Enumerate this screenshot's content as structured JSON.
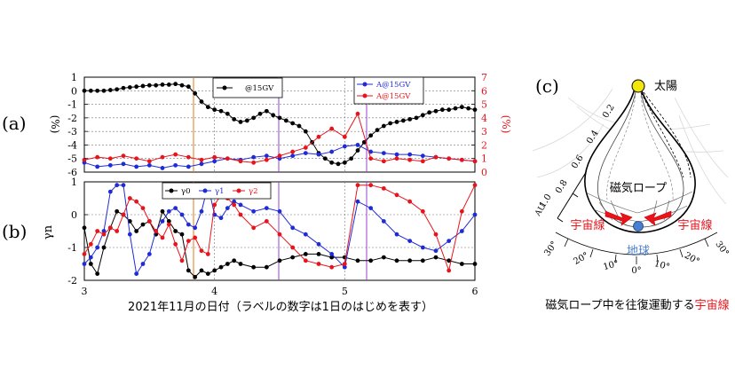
{
  "panel_labels": {
    "a": "(a)",
    "b": "(b)",
    "c": "(c)"
  },
  "xlabel": "2021年11月の日付（ラベルの数字は1日のはじめを表す）",
  "colors": {
    "black": "#000000",
    "blue": "#1f2bd6",
    "red": "#e8141c",
    "orange": "#e07a1a",
    "purple": "#9a40d0",
    "sun": "#f2e60c",
    "earth": "#4a7fd0"
  },
  "chart_data": [
    {
      "type": "line",
      "panel": "a",
      "xlim": [
        3,
        6
      ],
      "x_ticks": [
        3,
        4,
        5,
        6
      ],
      "ylim": [
        -6,
        1
      ],
      "y_ticks": [
        -6,
        -5,
        -4,
        -3,
        -2,
        -1,
        0,
        1
      ],
      "ylabel": "(%)",
      "ylim_right": [
        0,
        7
      ],
      "y_ticks_right": [
        0,
        1,
        2,
        3,
        4,
        5,
        6,
        7
      ],
      "ylabel_right": "(%)",
      "grid": true,
      "legend_left": [
        "@15GV"
      ],
      "legend_right": [
        "A@15GV",
        "A@15GV"
      ],
      "series": [
        {
          "axis": "left",
          "color": "black",
          "x": [
            3.0,
            3.05,
            3.1,
            3.15,
            3.2,
            3.25,
            3.3,
            3.35,
            3.4,
            3.45,
            3.5,
            3.55,
            3.6,
            3.65,
            3.7,
            3.75,
            3.8,
            3.85,
            3.9,
            3.95,
            4.0,
            4.05,
            4.1,
            4.15,
            4.2,
            4.25,
            4.3,
            4.35,
            4.4,
            4.45,
            4.5,
            4.55,
            4.6,
            4.65,
            4.7,
            4.75,
            4.8,
            4.85,
            4.9,
            4.95,
            5.0,
            5.05,
            5.1,
            5.15,
            5.2,
            5.25,
            5.3,
            5.35,
            5.4,
            5.45,
            5.5,
            5.55,
            5.6,
            5.65,
            5.7,
            5.75,
            5.8,
            5.85,
            5.9,
            5.95,
            6.0
          ],
          "y": [
            0,
            0,
            0,
            0,
            0.05,
            0.1,
            0.2,
            0.25,
            0.3,
            0.35,
            0.4,
            0.4,
            0.45,
            0.45,
            0.5,
            0.4,
            0.3,
            -0.2,
            -0.8,
            -1.2,
            -1.4,
            -1.5,
            -1.7,
            -2.1,
            -2.3,
            -2.2,
            -2.0,
            -1.7,
            -1.5,
            -1.8,
            -2.0,
            -2.2,
            -2.4,
            -2.6,
            -3.0,
            -3.8,
            -4.6,
            -5.0,
            -5.3,
            -5.4,
            -5.3,
            -5.0,
            -4.4,
            -3.8,
            -3.3,
            -2.9,
            -2.6,
            -2.4,
            -2.3,
            -2.2,
            -2.1,
            -2.0,
            -1.8,
            -1.6,
            -1.5,
            -1.4,
            -1.4,
            -1.3,
            -1.2,
            -1.3,
            -1.4
          ]
        },
        {
          "axis": "right",
          "color": "blue",
          "x": [
            3.0,
            3.1,
            3.2,
            3.3,
            3.4,
            3.5,
            3.6,
            3.7,
            3.8,
            3.9,
            4.0,
            4.1,
            4.2,
            4.3,
            4.4,
            4.5,
            4.6,
            4.7,
            4.8,
            4.9,
            5.0,
            5.1,
            5.2,
            5.3,
            5.4,
            5.5,
            5.6,
            5.7,
            5.8,
            5.9,
            6.0
          ],
          "y": [
            0.7,
            0.4,
            0.5,
            0.6,
            0.4,
            0.5,
            0.3,
            0.5,
            0.4,
            0.6,
            0.8,
            1.0,
            0.9,
            1.1,
            1.2,
            1.0,
            1.2,
            1.4,
            1.3,
            1.5,
            1.9,
            2.0,
            1.5,
            1.4,
            1.3,
            1.3,
            1.2,
            1.1,
            1.0,
            0.9,
            0.8
          ]
        },
        {
          "axis": "right",
          "color": "red",
          "x": [
            3.0,
            3.1,
            3.2,
            3.3,
            3.4,
            3.5,
            3.6,
            3.7,
            3.8,
            3.9,
            4.0,
            4.1,
            4.2,
            4.3,
            4.4,
            4.5,
            4.6,
            4.7,
            4.8,
            4.9,
            5.0,
            5.1,
            5.2,
            5.3,
            5.4,
            5.5,
            5.6,
            5.7,
            5.8,
            5.9,
            6.0
          ],
          "y": [
            0.9,
            1.1,
            1.0,
            1.2,
            1.0,
            0.8,
            1.1,
            1.3,
            1.1,
            0.9,
            1.1,
            1.0,
            0.8,
            0.7,
            0.9,
            1.2,
            1.5,
            1.8,
            2.6,
            3.2,
            2.6,
            4.3,
            1.0,
            0.8,
            1.0,
            0.9,
            0.8,
            1.1,
            1.0,
            0.9,
            0.8
          ]
        }
      ]
    },
    {
      "type": "line",
      "panel": "b",
      "xlim": [
        3,
        6
      ],
      "x_ticks": [
        3,
        4,
        5,
        6
      ],
      "ylim": [
        -2,
        1
      ],
      "y_ticks": [
        -2,
        -1,
        0,
        1
      ],
      "ylabel": "γn",
      "grid": true,
      "legend": [
        "γ0",
        "γ1",
        "γ2"
      ],
      "series": [
        {
          "name": "γ0",
          "color": "black",
          "x": [
            3.0,
            3.05,
            3.1,
            3.15,
            3.2,
            3.25,
            3.3,
            3.35,
            3.4,
            3.45,
            3.5,
            3.55,
            3.6,
            3.65,
            3.7,
            3.75,
            3.8,
            3.85,
            3.9,
            3.95,
            4.0,
            4.05,
            4.1,
            4.15,
            4.2,
            4.3,
            4.4,
            4.5,
            4.6,
            4.7,
            4.8,
            4.9,
            5.0,
            5.1,
            5.2,
            5.3,
            5.4,
            5.5,
            5.6,
            5.7,
            5.8,
            5.9,
            6.0
          ],
          "y": [
            -0.4,
            -1.5,
            -1.8,
            -1.0,
            -0.4,
            0.1,
            0.0,
            -0.2,
            -0.5,
            -0.3,
            -0.2,
            -0.6,
            0.1,
            -0.2,
            -0.5,
            -0.6,
            -1.7,
            -1.9,
            -1.7,
            -1.8,
            -1.7,
            -1.6,
            -1.5,
            -1.4,
            -1.5,
            -1.6,
            -1.6,
            -1.4,
            -1.3,
            -1.2,
            -1.2,
            -1.3,
            -1.3,
            -1.4,
            -1.4,
            -1.3,
            -1.4,
            -1.4,
            -1.4,
            -1.3,
            -1.4,
            -1.5,
            -1.5
          ]
        },
        {
          "name": "γ1",
          "color": "blue",
          "x": [
            3.0,
            3.05,
            3.1,
            3.15,
            3.2,
            3.25,
            3.3,
            3.35,
            3.4,
            3.45,
            3.5,
            3.55,
            3.6,
            3.65,
            3.7,
            3.75,
            3.8,
            3.85,
            3.9,
            3.95,
            4.0,
            4.05,
            4.1,
            4.15,
            4.2,
            4.3,
            4.4,
            4.5,
            4.6,
            4.7,
            4.8,
            4.9,
            5.0,
            5.1,
            5.2,
            5.3,
            5.4,
            5.5,
            5.6,
            5.7,
            5.8,
            5.9,
            6.0
          ],
          "y": [
            -1.5,
            -1.3,
            -1.0,
            -0.5,
            0.7,
            0.9,
            0.9,
            -0.6,
            -1.8,
            -1.5,
            -1.2,
            -0.5,
            -0.2,
            0.1,
            0.2,
            0.0,
            -0.3,
            -0.4,
            0.1,
            0.9,
            0.0,
            -0.1,
            0.2,
            0.4,
            0.3,
            0.1,
            0.2,
            0.1,
            -0.4,
            -0.6,
            -0.9,
            -1.2,
            -1.6,
            0.4,
            0.2,
            -0.2,
            -0.6,
            -0.8,
            -1.0,
            -1.1,
            -0.8,
            -0.5,
            0.0
          ]
        },
        {
          "name": "γ2",
          "color": "red",
          "x": [
            3.0,
            3.05,
            3.1,
            3.15,
            3.2,
            3.25,
            3.3,
            3.35,
            3.4,
            3.45,
            3.5,
            3.55,
            3.6,
            3.65,
            3.7,
            3.75,
            3.8,
            3.85,
            3.9,
            3.95,
            4.0,
            4.05,
            4.1,
            4.15,
            4.2,
            4.3,
            4.4,
            4.5,
            4.6,
            4.7,
            4.8,
            4.9,
            5.0,
            5.1,
            5.2,
            5.3,
            5.4,
            5.5,
            5.6,
            5.7,
            5.8,
            5.9,
            6.0
          ],
          "y": [
            -1.2,
            -0.9,
            -0.5,
            -0.6,
            -0.4,
            -0.5,
            0.0,
            0.5,
            0.4,
            0.2,
            -0.2,
            -0.5,
            -0.7,
            -0.3,
            -0.9,
            -1.4,
            -0.8,
            -0.7,
            -1.1,
            -1.2,
            0.3,
            0.6,
            0.5,
            0.3,
            0.0,
            -0.4,
            -0.2,
            -0.6,
            -1.0,
            -1.4,
            -1.5,
            -1.6,
            -1.5,
            0.9,
            0.9,
            0.8,
            0.6,
            0.4,
            0.1,
            -0.6,
            -1.7,
            0.1,
            0.9
          ]
        }
      ]
    }
  ],
  "diagram": {
    "sun_label": "太陽",
    "rope_label": "磁気ロープ",
    "ray_left": "宇宙線",
    "ray_right": "宇宙線",
    "earth_label": "地球",
    "au_label": "AU",
    "radial_ticks": [
      "0.2",
      "0.4",
      "0.6",
      "0.8",
      "1.0"
    ],
    "angle_left": [
      "30°",
      "20°",
      "10°"
    ],
    "zero_label": "0°",
    "angle_right": [
      "10°",
      "20°",
      "30°"
    ],
    "caption_main": "磁気ロープ中を往復運動する",
    "caption_highlight": "宇宙線"
  }
}
